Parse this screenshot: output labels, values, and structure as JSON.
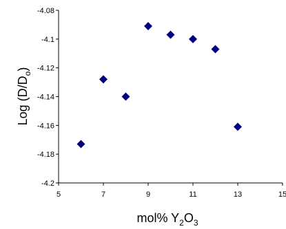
{
  "chart_data": {
    "type": "scatter",
    "title": "",
    "xlabel": {
      "main": "mol% Y",
      "sub1": "2",
      "mid": "O",
      "sub2": "3"
    },
    "ylabel": {
      "main": "Log (D/D",
      "sub": "o",
      "end": ")"
    },
    "xlim": [
      5,
      15
    ],
    "ylim": [
      -4.2,
      -4.08
    ],
    "x_ticks": [
      5,
      7,
      9,
      11,
      13,
      15
    ],
    "y_ticks": [
      -4.08,
      -4.1,
      -4.12,
      -4.14,
      -4.16,
      -4.18,
      -4.2
    ],
    "x_tick_labels": [
      "5",
      "7",
      "9",
      "11",
      "13",
      "15"
    ],
    "y_tick_labels": [
      "-4.08",
      "-4.1",
      "-4.12",
      "-4.14",
      "-4.16",
      "-4.18",
      "-4.2"
    ],
    "grid": false,
    "legend": "none",
    "marker": "diamond",
    "marker_color": "#00007f",
    "points": [
      {
        "x": 6,
        "y": -4.173
      },
      {
        "x": 7,
        "y": -4.128
      },
      {
        "x": 8,
        "y": -4.14
      },
      {
        "x": 9,
        "y": -4.091
      },
      {
        "x": 10,
        "y": -4.097
      },
      {
        "x": 11,
        "y": -4.1
      },
      {
        "x": 12,
        "y": -4.107
      },
      {
        "x": 13,
        "y": -4.161
      }
    ]
  }
}
